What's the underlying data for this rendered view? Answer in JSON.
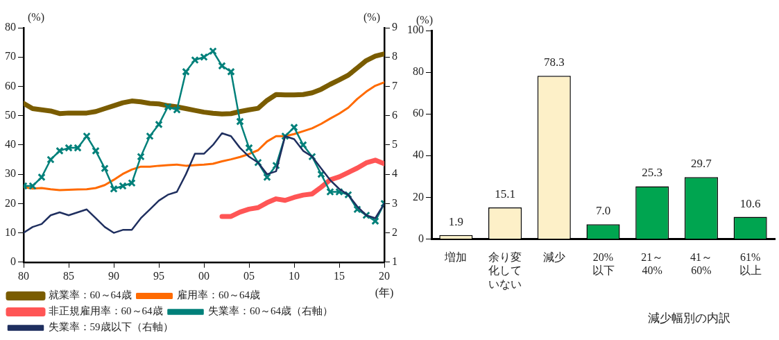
{
  "chart_data": [
    {
      "type": "line",
      "xlabel": "(年)",
      "ylabel": "(%)",
      "y2label": "(%)",
      "x": [
        1980,
        1981,
        1982,
        1983,
        1984,
        1985,
        1986,
        1987,
        1988,
        1989,
        1990,
        1991,
        1992,
        1993,
        1994,
        1995,
        1996,
        1997,
        1998,
        1999,
        2000,
        2001,
        2002,
        2003,
        2004,
        2005,
        2006,
        2007,
        2008,
        2009,
        2010,
        2011,
        2012,
        2013,
        2014,
        2015,
        2016,
        2017,
        2018,
        2019,
        2020
      ],
      "series": [
        {
          "name": "就業率：60～64歳",
          "color": "#7a5c00",
          "marker": "none",
          "values": [
            54.2,
            52.4,
            52,
            51.6,
            50.7,
            50.9,
            50.9,
            50.9,
            51.4,
            52.4,
            53.4,
            54.4,
            55,
            54.7,
            54.2,
            54,
            53.4,
            53,
            52.4,
            51.8,
            51.2,
            50.8,
            50.6,
            50.7,
            51.4,
            52,
            52.5,
            55.2,
            57.2,
            57.1,
            57.1,
            57.2,
            57.8,
            59,
            60.7,
            62.2,
            63.8,
            66.3,
            68.8,
            70.3,
            71.1
          ]
        },
        {
          "name": "雇用率：60～64歳",
          "color": "#ff6a00",
          "marker": "none",
          "values": [
            25.6,
            25.1,
            25.3,
            24.9,
            24.6,
            24.7,
            24.8,
            24.9,
            25.3,
            26.3,
            28.1,
            30.1,
            31.6,
            32.6,
            32.6,
            32.9,
            33.1,
            33.3,
            32.9,
            33.1,
            33.3,
            33.6,
            34.4,
            35.1,
            35.9,
            36.9,
            38.2,
            41.2,
            43,
            43,
            43.7,
            44.7,
            45.7,
            47.2,
            49,
            50.7,
            52.7,
            55.7,
            58.2,
            60.2,
            61.4
          ]
        },
        {
          "name": "非正規雇用率：60～64歳",
          "color": "#ff5555",
          "marker": "none",
          "x": [
            2002,
            2003,
            2004,
            2005,
            2006,
            2007,
            2008,
            2009,
            2010,
            2011,
            2012,
            2013,
            2014,
            2015,
            2016,
            2017,
            2018,
            2019,
            2020
          ],
          "values": [
            15.6,
            15.6,
            17.1,
            18.1,
            18.6,
            20.3,
            21.6,
            21.1,
            22.1,
            22.9,
            23.3,
            25.6,
            28.1,
            29.1,
            30.6,
            32.1,
            33.9,
            34.8,
            33.6
          ]
        },
        {
          "name": "失業率：60～64歳（右軸）",
          "color": "#00807a",
          "marker": "cross",
          "axis": "y2",
          "values": [
            3.6,
            3.6,
            3.9,
            4.5,
            4.8,
            4.9,
            4.9,
            5.3,
            4.8,
            4.2,
            3.5,
            3.6,
            3.7,
            4.6,
            5.3,
            5.7,
            6.3,
            6.2,
            7.5,
            7.9,
            8,
            8.2,
            7.7,
            7.5,
            5.8,
            4.9,
            4.4,
            3.9,
            4.3,
            5.3,
            5.6,
            5,
            4.6,
            4,
            3.4,
            3.4,
            3.3,
            2.8,
            2.6,
            2.4,
            3
          ]
        },
        {
          "name": "失業率：59歳以下（右軸）",
          "color": "#1f2f5f",
          "marker": "none",
          "axis": "y2",
          "values": [
            2,
            2.2,
            2.3,
            2.6,
            2.7,
            2.6,
            2.7,
            2.8,
            2.5,
            2.2,
            2,
            2.1,
            2.1,
            2.5,
            2.8,
            3.1,
            3.3,
            3.4,
            4,
            4.7,
            4.7,
            5,
            5.4,
            5.3,
            4.9,
            4.6,
            4.4,
            4,
            4.1,
            5.3,
            5.2,
            4.8,
            4.6,
            4.2,
            3.8,
            3.5,
            3.3,
            2.9,
            2.6,
            2.5,
            3
          ]
        }
      ],
      "xlim": [
        1980,
        2020
      ],
      "xticks": [
        {
          "value": 1980,
          "label": "80"
        },
        {
          "value": 1985,
          "label": "85"
        },
        {
          "value": 1990,
          "label": "90"
        },
        {
          "value": 1995,
          "label": "95"
        },
        {
          "value": 2000,
          "label": "00"
        },
        {
          "value": 2005,
          "label": "05"
        },
        {
          "value": 2010,
          "label": "10"
        },
        {
          "value": 2015,
          "label": "15"
        },
        {
          "value": 2020,
          "label": "20"
        }
      ],
      "ylim": [
        0,
        80
      ],
      "yticks": [
        0,
        10,
        20,
        30,
        40,
        50,
        60,
        70,
        80
      ],
      "y2lim": [
        1,
        9
      ],
      "y2ticks": [
        1,
        2,
        3,
        4,
        5,
        6,
        7,
        8,
        9
      ],
      "grid": false,
      "legend": "bottom"
    },
    {
      "type": "bar",
      "ylabel": "(%)",
      "categories": [
        "増加",
        "余り変化していない",
        "減少",
        "20%以下",
        "21～40%",
        "41～60%",
        "61%以上"
      ],
      "values": [
        1.9,
        15.1,
        78.3,
        7.0,
        25.3,
        29.7,
        10.6
      ],
      "value_labels": [
        "1.9",
        "15.1",
        "78.3",
        "7.0",
        "25.3",
        "29.7",
        "10.6"
      ],
      "colors": [
        "#fdf0c8",
        "#fdf0c8",
        "#fdf0c8",
        "#00a550",
        "#00a550",
        "#00a550",
        "#00a550"
      ],
      "ylim": [
        0,
        100
      ],
      "yticks": [
        0,
        20,
        40,
        60,
        80,
        100
      ],
      "annotations": [
        "減少幅別の内訳"
      ],
      "grid": false,
      "legend": false
    }
  ]
}
